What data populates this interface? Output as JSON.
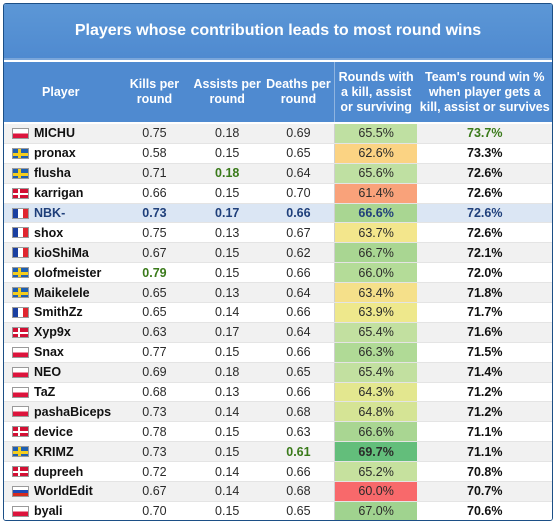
{
  "title": "Players whose contribution leads to most round wins",
  "columns": {
    "player": "Player",
    "kills": "Kills per round",
    "assists": "Assists per round",
    "deaths": "Deaths per round",
    "rounds": "Rounds with a kill, assist or surviving",
    "team": "Team's round win % when player gets a kill, assist or survives"
  },
  "rows": [
    {
      "name": "MICHU",
      "flag": "poland-flag-icon",
      "kills": "0.75",
      "assists": "0.18",
      "deaths": "0.69",
      "rounds": "65.5%",
      "team": "73.7%",
      "rounds_color": "#bfe0a2"
    },
    {
      "name": "pronax",
      "flag": "sweden-flag-icon",
      "kills": "0.58",
      "assists": "0.15",
      "deaths": "0.65",
      "rounds": "62.6%",
      "team": "73.3%",
      "rounds_color": "#fbd383"
    },
    {
      "name": "flusha",
      "flag": "sweden-flag-icon",
      "kills": "0.71",
      "assists": "0.18",
      "deaths": "0.64",
      "rounds": "65.6%",
      "team": "72.6%",
      "rounds_color": "#bfe0a2"
    },
    {
      "name": "karrigan",
      "flag": "denmark-flag-icon",
      "kills": "0.66",
      "assists": "0.15",
      "deaths": "0.70",
      "rounds": "61.4%",
      "team": "72.6%",
      "rounds_color": "#f9a27a"
    },
    {
      "name": "NBK-",
      "flag": "france-flag-icon",
      "kills": "0.73",
      "assists": "0.17",
      "deaths": "0.66",
      "rounds": "66.6%",
      "team": "72.6%",
      "rounds_color": "#a9d692"
    },
    {
      "name": "shox",
      "flag": "france-flag-icon",
      "kills": "0.75",
      "assists": "0.13",
      "deaths": "0.67",
      "rounds": "63.7%",
      "team": "72.6%",
      "rounds_color": "#f3e68c"
    },
    {
      "name": "kioShiMa",
      "flag": "france-flag-icon",
      "kills": "0.67",
      "assists": "0.15",
      "deaths": "0.62",
      "rounds": "66.7%",
      "team": "72.1%",
      "rounds_color": "#a9d692"
    },
    {
      "name": "olofmeister",
      "flag": "sweden-flag-icon",
      "kills": "0.79",
      "assists": "0.15",
      "deaths": "0.66",
      "rounds": "66.0%",
      "team": "72.0%",
      "rounds_color": "#b4dc98"
    },
    {
      "name": "Maikelele",
      "flag": "sweden-flag-icon",
      "kills": "0.65",
      "assists": "0.13",
      "deaths": "0.64",
      "rounds": "63.4%",
      "team": "71.8%",
      "rounds_color": "#f5e08a"
    },
    {
      "name": "SmithZz",
      "flag": "france-flag-icon",
      "kills": "0.65",
      "assists": "0.14",
      "deaths": "0.66",
      "rounds": "63.9%",
      "team": "71.7%",
      "rounds_color": "#eee88c"
    },
    {
      "name": "Xyp9x",
      "flag": "denmark-flag-icon",
      "kills": "0.63",
      "assists": "0.17",
      "deaths": "0.64",
      "rounds": "65.4%",
      "team": "71.6%",
      "rounds_color": "#c2e0a0"
    },
    {
      "name": "Snax",
      "flag": "poland-flag-icon",
      "kills": "0.77",
      "assists": "0.15",
      "deaths": "0.66",
      "rounds": "66.3%",
      "team": "71.5%",
      "rounds_color": "#b0da96"
    },
    {
      "name": "NEO",
      "flag": "poland-flag-icon",
      "kills": "0.69",
      "assists": "0.18",
      "deaths": "0.65",
      "rounds": "65.4%",
      "team": "71.4%",
      "rounds_color": "#c2e0a0"
    },
    {
      "name": "TaZ",
      "flag": "poland-flag-icon",
      "kills": "0.68",
      "assists": "0.13",
      "deaths": "0.66",
      "rounds": "64.3%",
      "team": "71.2%",
      "rounds_color": "#e3e78f"
    },
    {
      "name": "pashaBiceps",
      "flag": "poland-flag-icon",
      "kills": "0.73",
      "assists": "0.14",
      "deaths": "0.68",
      "rounds": "64.8%",
      "team": "71.2%",
      "rounds_color": "#d5e495"
    },
    {
      "name": "device",
      "flag": "denmark-flag-icon",
      "kills": "0.78",
      "assists": "0.15",
      "deaths": "0.63",
      "rounds": "66.6%",
      "team": "71.1%",
      "rounds_color": "#a9d692"
    },
    {
      "name": "KRIMZ",
      "flag": "sweden-flag-icon",
      "kills": "0.73",
      "assists": "0.15",
      "deaths": "0.61",
      "rounds": "69.7%",
      "team": "71.1%",
      "rounds_color": "#63be7b"
    },
    {
      "name": "dupreeh",
      "flag": "denmark-flag-icon",
      "kills": "0.72",
      "assists": "0.14",
      "deaths": "0.66",
      "rounds": "65.2%",
      "team": "70.8%",
      "rounds_color": "#c6e19e"
    },
    {
      "name": "WorldEdit",
      "flag": "russia-flag-icon",
      "kills": "0.67",
      "assists": "0.14",
      "deaths": "0.68",
      "rounds": "60.0%",
      "team": "70.7%",
      "rounds_color": "#f8696b"
    },
    {
      "name": "byali",
      "flag": "poland-flag-icon",
      "kills": "0.70",
      "assists": "0.15",
      "deaths": "0.65",
      "rounds": "67.0%",
      "team": "70.6%",
      "rounds_color": "#a0d38f"
    }
  ]
}
